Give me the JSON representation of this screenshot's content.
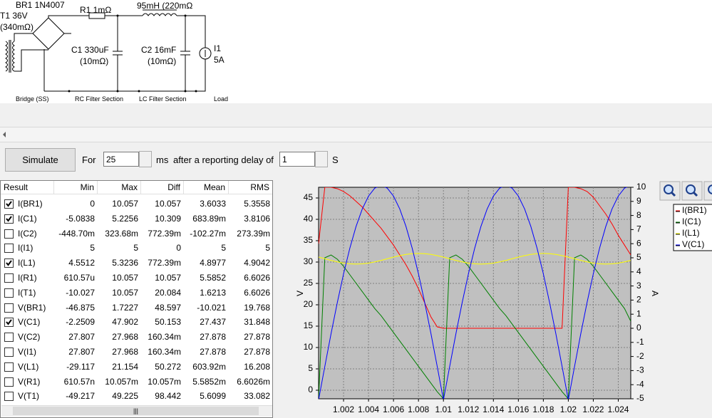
{
  "schematic": {
    "labels": [
      "BR1 1N4007",
      "T1 36V",
      "(340mΩ)",
      "R1 1mΩ",
      "95mH (220mΩ",
      "C1 330uF",
      "(10mΩ)",
      "C2 16mF",
      "(10mΩ)",
      "I1",
      "5A"
    ],
    "sections": [
      "Bridge (SS)",
      "RC Filter Section",
      "LC Filter Section",
      "Load"
    ]
  },
  "toolbar": {
    "button": "Simulate",
    "for_label": "For",
    "duration": "25",
    "duration_unit": "ms",
    "delay_label": "after a reporting delay of",
    "delay": "1",
    "delay_unit": "S"
  },
  "table": {
    "columns": [
      "Result",
      "Min",
      "Max",
      "Diff",
      "Mean",
      "RMS"
    ],
    "rows": [
      {
        "checked": true,
        "cells": [
          "I(BR1)",
          "0",
          "10.057",
          "10.057",
          "3.6033",
          "5.3558"
        ]
      },
      {
        "checked": true,
        "cells": [
          "I(C1)",
          "-5.0838",
          "5.2256",
          "10.309",
          "683.89m",
          "3.8106"
        ]
      },
      {
        "checked": false,
        "cells": [
          "I(C2)",
          "-448.70m",
          "323.68m",
          "772.39m",
          "-102.27m",
          "273.39m"
        ]
      },
      {
        "checked": false,
        "cells": [
          "I(I1)",
          "5",
          "5",
          "0",
          "5",
          "5"
        ]
      },
      {
        "checked": true,
        "cells": [
          "I(L1)",
          "4.5512",
          "5.3236",
          "772.39m",
          "4.8977",
          "4.9042"
        ]
      },
      {
        "checked": false,
        "cells": [
          "I(R1)",
          "610.57u",
          "10.057",
          "10.057",
          "5.5852",
          "6.6026"
        ]
      },
      {
        "checked": false,
        "cells": [
          "I(T1)",
          "-10.027",
          "10.057",
          "20.084",
          "1.6213",
          "6.6026"
        ]
      },
      {
        "checked": false,
        "cells": [
          "V(BR1)",
          "-46.875",
          "1.7227",
          "48.597",
          "-10.021",
          "19.768"
        ]
      },
      {
        "checked": true,
        "cells": [
          "V(C1)",
          "-2.2509",
          "47.902",
          "50.153",
          "27.437",
          "31.848"
        ]
      },
      {
        "checked": false,
        "cells": [
          "V(C2)",
          "27.807",
          "27.968",
          "160.34m",
          "27.878",
          "27.878"
        ]
      },
      {
        "checked": false,
        "cells": [
          "V(I1)",
          "27.807",
          "27.968",
          "160.34m",
          "27.878",
          "27.878"
        ]
      },
      {
        "checked": false,
        "cells": [
          "V(L1)",
          "-29.117",
          "21.154",
          "50.272",
          "603.92m",
          "16.208"
        ]
      },
      {
        "checked": false,
        "cells": [
          "V(R1)",
          "610.57n",
          "10.057m",
          "10.057m",
          "5.5852m",
          "6.6026m"
        ]
      },
      {
        "checked": false,
        "cells": [
          "V(T1)",
          "-49.217",
          "49.225",
          "98.442",
          "5.6099",
          "33.082"
        ]
      }
    ]
  },
  "chart_data": {
    "type": "line",
    "ylabel": "V",
    "y2label": "A",
    "xlim": [
      1.0,
      1.025
    ],
    "xticks": [
      1.002,
      1.004,
      1.006,
      1.008,
      1.01,
      1.012,
      1.014,
      1.016,
      1.018,
      1.02,
      1.022,
      1.024
    ],
    "ylim": [
      -2,
      47.5
    ],
    "yticks": [
      0,
      5,
      10,
      15,
      20,
      25,
      30,
      35,
      40,
      45
    ],
    "y2lim": [
      -5,
      10
    ],
    "y2ticks": [
      -5,
      -4,
      -3,
      -2,
      -1,
      0,
      1,
      2,
      3,
      4,
      5,
      6,
      7,
      8,
      9,
      10
    ],
    "grid": true,
    "x": [
      1.0,
      1.0005,
      1.001,
      1.0015,
      1.002,
      1.0025,
      1.003,
      1.0035,
      1.004,
      1.0045,
      1.005,
      1.0055,
      1.006,
      1.0065,
      1.007,
      1.0075,
      1.008,
      1.0085,
      1.009,
      1.0095,
      1.01,
      1.0105,
      1.011,
      1.0115,
      1.012,
      1.0125,
      1.013,
      1.0135,
      1.014,
      1.0145,
      1.015,
      1.0155,
      1.016,
      1.0165,
      1.017,
      1.0175,
      1.018,
      1.0185,
      1.019,
      1.0195,
      1.02,
      1.0205,
      1.021,
      1.0215,
      1.022,
      1.0225,
      1.023,
      1.0235,
      1.024,
      1.0245,
      1.025
    ],
    "series": [
      {
        "name": "I(BR1)",
        "color": "#ff0000",
        "axis": "y2",
        "values": [
          6.0,
          10.0,
          10.0,
          9.9,
          9.7,
          9.4,
          9.0,
          8.6,
          8.1,
          7.6,
          7.1,
          6.5,
          5.9,
          5.2,
          4.5,
          3.7,
          2.8,
          1.8,
          0.8,
          0.1,
          0,
          0,
          0,
          0,
          0,
          0,
          0,
          0,
          0,
          0,
          0,
          0,
          0,
          0,
          0,
          0,
          0,
          0,
          0,
          0,
          10.0,
          10.0,
          9.9,
          9.7,
          9.3,
          8.7,
          8.1,
          7.4,
          6.6,
          5.9,
          5.2
        ]
      },
      {
        "name": "I(C1)",
        "color": "#008000",
        "axis": "y2",
        "values": [
          -5.0,
          5.0,
          5.2,
          4.9,
          4.4,
          3.8,
          3.2,
          2.6,
          2.0,
          1.4,
          0.9,
          0.3,
          -0.3,
          -0.9,
          -1.5,
          -2.1,
          -2.7,
          -3.3,
          -3.9,
          -4.5,
          -5.0,
          5.0,
          5.2,
          4.9,
          4.4,
          3.8,
          3.2,
          2.6,
          2.0,
          1.4,
          0.9,
          0.3,
          -0.3,
          -0.9,
          -1.5,
          -2.1,
          -2.7,
          -3.3,
          -3.9,
          -4.5,
          -5.0,
          5.0,
          5.2,
          4.9,
          4.4,
          3.8,
          3.2,
          2.6,
          2.0,
          1.4,
          0.5
        ]
      },
      {
        "name": "I(L1)",
        "color": "#ffff00",
        "axis": "y2",
        "values": [
          5.05,
          4.93,
          4.81,
          4.71,
          4.62,
          4.57,
          4.55,
          4.57,
          4.62,
          4.71,
          4.81,
          4.93,
          5.05,
          5.15,
          5.24,
          5.29,
          5.31,
          5.29,
          5.24,
          5.15,
          5.05,
          4.93,
          4.81,
          4.71,
          4.62,
          4.57,
          4.55,
          4.57,
          4.62,
          4.71,
          4.81,
          4.93,
          5.05,
          5.15,
          5.24,
          5.29,
          5.31,
          5.29,
          5.24,
          5.15,
          5.05,
          4.93,
          4.81,
          4.71,
          4.62,
          4.57,
          4.55,
          4.57,
          4.62,
          4.71,
          4.81
        ]
      },
      {
        "name": "V(C1)",
        "color": "#0000ff",
        "values": [
          -2.25,
          5.57,
          13.25,
          20.52,
          27.24,
          33.21,
          38.32,
          42.43,
          45.44,
          47.3,
          47.9,
          47.3,
          45.44,
          42.43,
          38.32,
          33.21,
          27.24,
          20.52,
          13.25,
          5.57,
          -2.25,
          5.57,
          13.25,
          20.52,
          27.24,
          33.21,
          38.32,
          42.43,
          45.44,
          47.3,
          47.9,
          47.3,
          45.44,
          42.43,
          38.32,
          33.21,
          27.24,
          20.52,
          13.25,
          5.57,
          -2.25,
          5.57,
          13.25,
          20.52,
          27.24,
          33.21,
          38.32,
          42.43,
          45.44,
          47.3,
          47.9
        ]
      }
    ]
  }
}
